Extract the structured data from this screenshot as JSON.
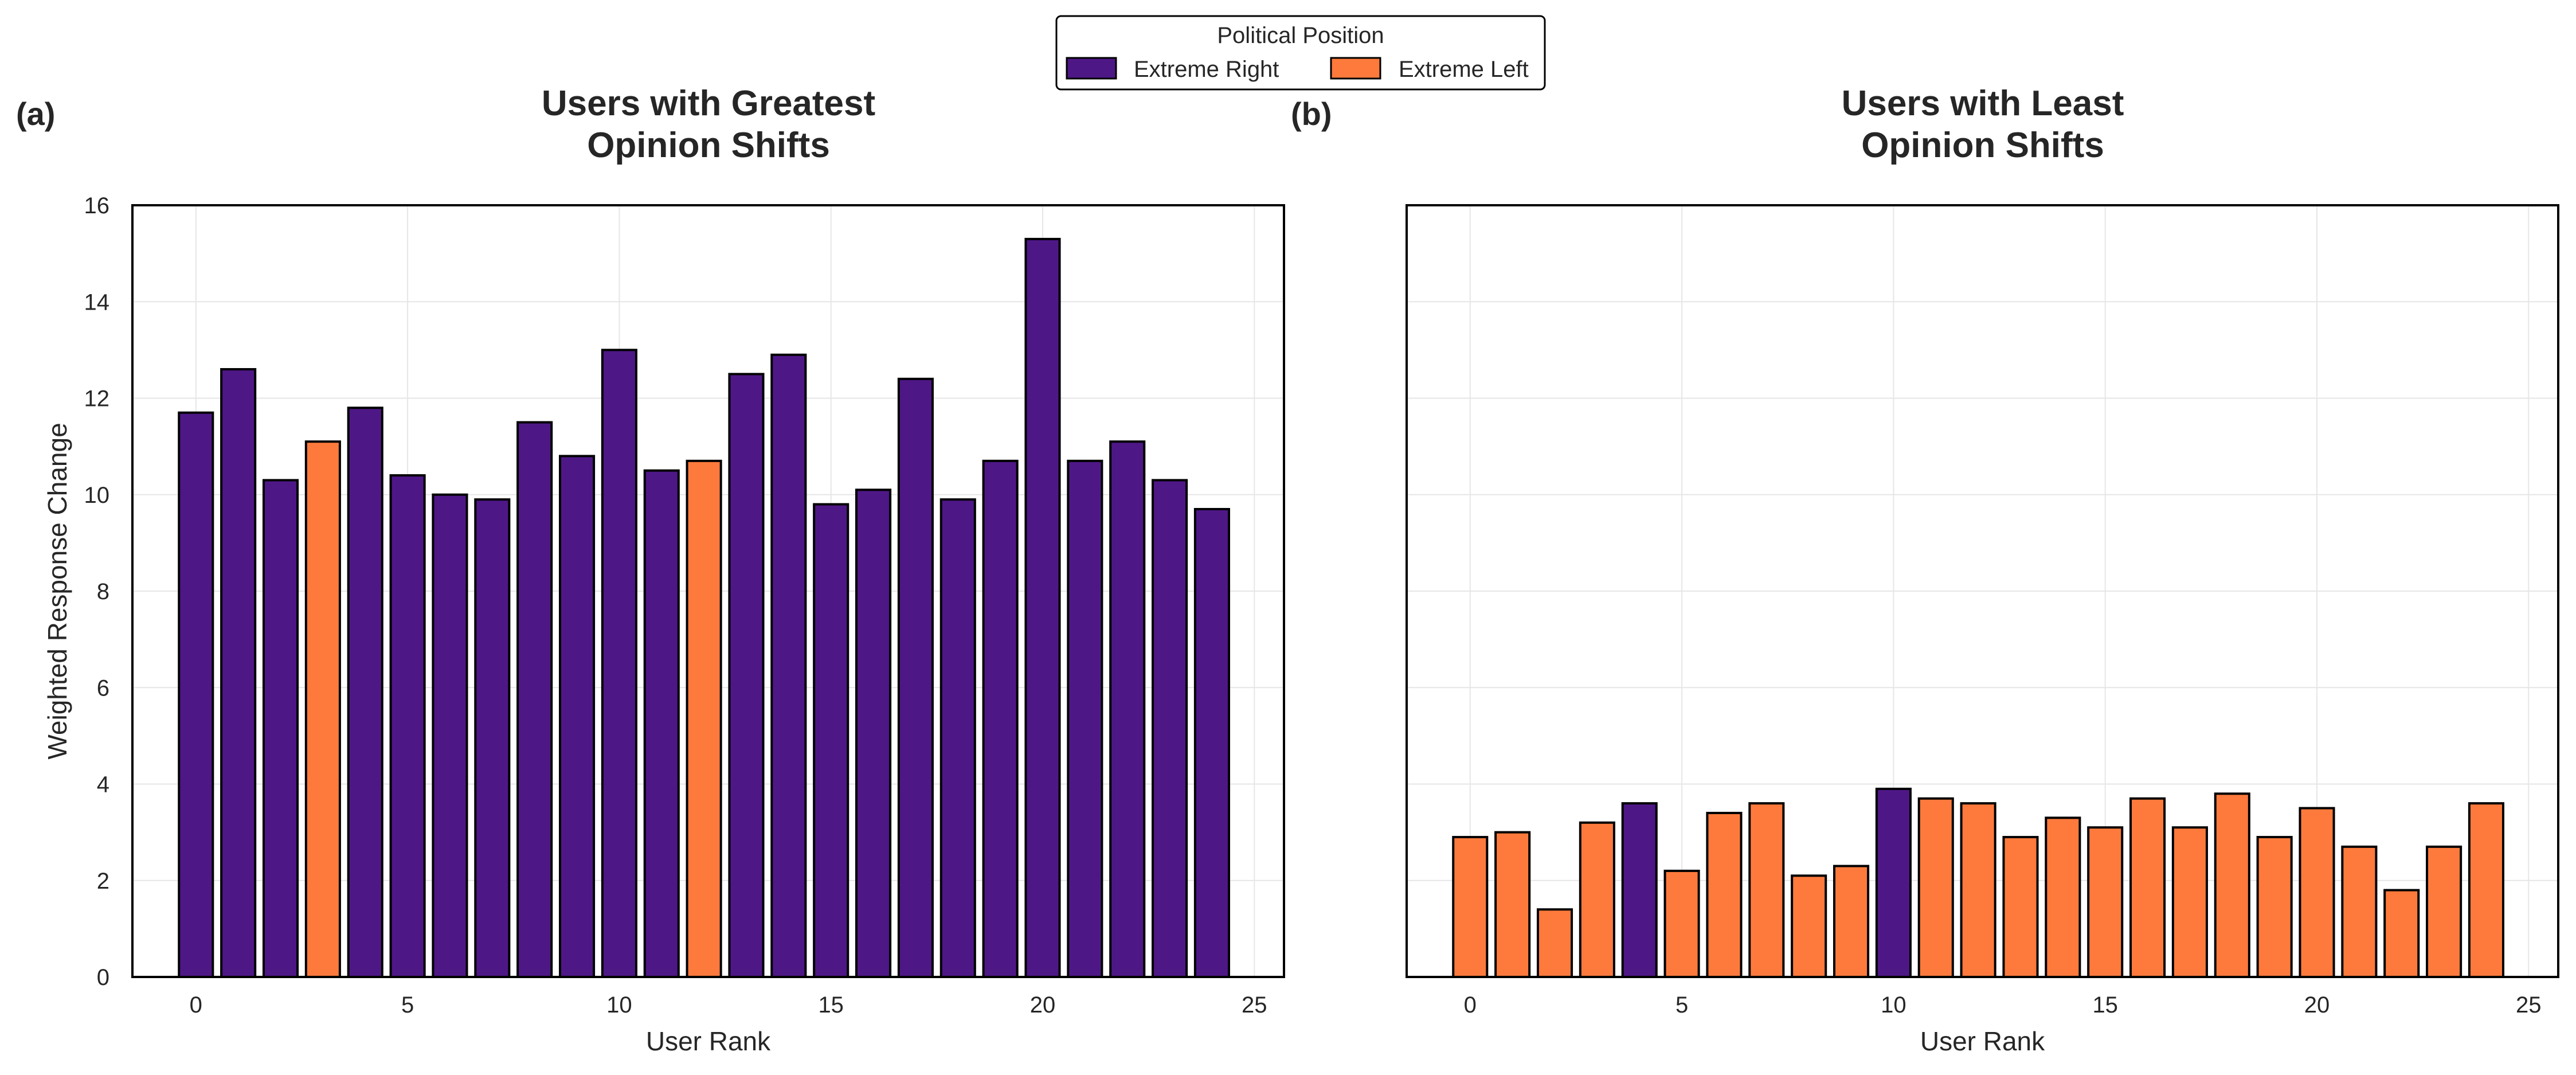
{
  "legend": {
    "title": "Political Position",
    "entries": [
      {
        "key": "right",
        "label": "Extreme Right",
        "color": "#4e1786"
      },
      {
        "key": "left",
        "label": "Extreme Left",
        "color": "#fd7a3c"
      }
    ]
  },
  "chart_data": [
    {
      "type": "bar",
      "panel_label": "(a)",
      "title": "Users with Greatest\nOpinion Shifts",
      "xlabel": "User Rank",
      "ylabel": "Weighted Response Change",
      "xlim": [
        -1.5,
        25.7
      ],
      "ylim": [
        0,
        16
      ],
      "xticks": [
        0,
        5,
        10,
        15,
        20,
        25
      ],
      "yticks": [
        0,
        2,
        4,
        6,
        8,
        10,
        12,
        14,
        16
      ],
      "grid": true,
      "x": [
        0,
        1,
        2,
        3,
        4,
        5,
        6,
        7,
        8,
        9,
        10,
        11,
        12,
        13,
        14,
        15,
        16,
        17,
        18,
        19,
        20,
        21,
        22,
        23,
        24
      ],
      "values": [
        11.7,
        12.6,
        10.3,
        11.1,
        11.8,
        10.4,
        10.0,
        9.9,
        11.5,
        10.8,
        13.0,
        10.5,
        10.7,
        12.5,
        12.9,
        9.8,
        10.1,
        12.4,
        9.9,
        10.7,
        15.3,
        10.7,
        11.1,
        10.3,
        9.7
      ],
      "position": [
        "right",
        "right",
        "right",
        "left",
        "right",
        "right",
        "right",
        "right",
        "right",
        "right",
        "right",
        "right",
        "left",
        "right",
        "right",
        "right",
        "right",
        "right",
        "right",
        "right",
        "right",
        "right",
        "right",
        "right",
        "right"
      ]
    },
    {
      "type": "bar",
      "panel_label": "(b)",
      "title": "Users with Least\nOpinion Shifts",
      "xlabel": "User Rank",
      "ylabel": "",
      "xlim": [
        -1.5,
        25.7
      ],
      "ylim": [
        0,
        16
      ],
      "xticks": [
        0,
        5,
        10,
        15,
        20,
        25
      ],
      "yticks": [],
      "grid": true,
      "x": [
        0,
        1,
        2,
        3,
        4,
        5,
        6,
        7,
        8,
        9,
        10,
        11,
        12,
        13,
        14,
        15,
        16,
        17,
        18,
        19,
        20,
        21,
        22,
        23,
        24
      ],
      "values": [
        2.9,
        3.0,
        1.4,
        3.2,
        3.6,
        2.2,
        3.4,
        3.6,
        2.1,
        2.3,
        3.9,
        3.7,
        3.6,
        2.9,
        3.3,
        3.1,
        3.7,
        3.1,
        3.8,
        2.9,
        3.5,
        2.7,
        1.8,
        2.7,
        3.6
      ],
      "position": [
        "left",
        "left",
        "left",
        "left",
        "right",
        "left",
        "left",
        "left",
        "left",
        "left",
        "right",
        "left",
        "left",
        "left",
        "left",
        "left",
        "left",
        "left",
        "left",
        "left",
        "left",
        "left",
        "left",
        "left",
        "left"
      ]
    }
  ]
}
